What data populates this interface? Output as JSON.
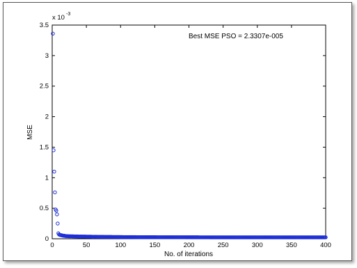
{
  "chart_data": {
    "type": "scatter",
    "title": "",
    "xlabel": "No. of iterations",
    "ylabel": "MSE",
    "xlim": [
      0,
      400
    ],
    "ylim": [
      0,
      0.0035
    ],
    "xticks": [
      0,
      50,
      100,
      150,
      200,
      250,
      300,
      350,
      400
    ],
    "xtick_labels": [
      "0",
      "50",
      "100",
      "150",
      "200",
      "250",
      "300",
      "350",
      "400"
    ],
    "yticks": [
      0,
      0.0005,
      0.001,
      0.0015,
      0.002,
      0.0025,
      0.003,
      0.0035
    ],
    "ytick_labels": [
      "0",
      "0.5",
      "1",
      "1.5",
      "2",
      "2.5",
      "3",
      "3.5"
    ],
    "y_exponent_label": "x 10",
    "y_exponent_power": "-3",
    "annotation": "Best MSE PSO = 2.3307e-005",
    "grid": false,
    "marker_color": "#1f2fd6",
    "x": [
      1,
      2,
      3,
      4,
      5,
      6,
      7,
      8,
      9,
      10,
      11,
      12,
      13,
      14,
      15,
      16,
      17,
      18,
      19,
      20,
      25,
      30,
      40,
      50,
      60,
      80,
      100,
      150,
      200,
      250,
      300,
      350,
      400
    ],
    "values": [
      0.00336,
      0.00145,
      0.0011,
      0.00076,
      0.00048,
      0.00046,
      0.0004,
      0.00025,
      9e-05,
      7e-05,
      6.5e-05,
      6e-05,
      6e-05,
      5.5e-05,
      5.5e-05,
      5e-05,
      5e-05,
      5e-05,
      4.5e-05,
      4.5e-05,
      4e-05,
      4e-05,
      3.5e-05,
      3.5e-05,
      3e-05,
      3e-05,
      2.8e-05,
      2.6e-05,
      2.5e-05,
      2.4e-05,
      2.35e-05,
      2.34e-05,
      2.33e-05
    ]
  }
}
